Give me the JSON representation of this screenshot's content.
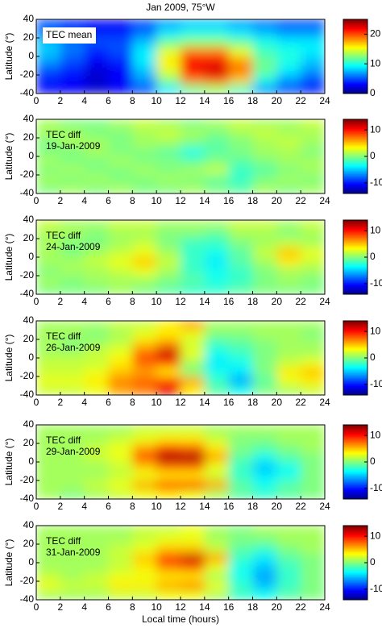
{
  "chart_data": [
    {
      "type": "heatmap",
      "title": "Jan 2009, 75°W",
      "annotation": [
        "TEC mean"
      ],
      "ylabel": "Latitude (°)",
      "colormap": "jet",
      "x": [
        1,
        3,
        5,
        7,
        9,
        11,
        13,
        15,
        17,
        19,
        21,
        23
      ],
      "y": [
        35,
        25,
        15,
        5,
        -5,
        -15,
        -25,
        -35
      ],
      "z": [
        [
          5,
          4,
          3,
          3,
          5,
          7,
          8,
          8,
          7,
          6,
          5,
          5
        ],
        [
          6,
          5,
          4,
          4,
          6,
          9,
          10,
          10,
          9,
          8,
          7,
          7
        ],
        [
          8,
          6,
          5,
          5,
          8,
          12,
          13,
          13,
          12,
          10,
          9,
          9
        ],
        [
          8,
          6,
          4,
          5,
          9,
          15,
          19,
          19,
          15,
          11,
          10,
          9
        ],
        [
          7,
          5,
          3,
          4,
          9,
          16,
          22,
          22,
          18,
          12,
          10,
          8
        ],
        [
          5,
          4,
          2,
          3,
          8,
          15,
          22,
          23,
          19,
          12,
          9,
          7
        ],
        [
          4,
          3,
          2,
          3,
          7,
          13,
          19,
          20,
          17,
          10,
          7,
          5
        ],
        [
          3,
          3,
          2,
          3,
          5,
          9,
          12,
          13,
          11,
          7,
          5,
          4
        ]
      ],
      "xlim": [
        0,
        24
      ],
      "ylim": [
        -40,
        40
      ],
      "xticks": [
        0,
        2,
        4,
        6,
        8,
        10,
        12,
        14,
        16,
        18,
        20,
        22,
        24
      ],
      "yticks": [
        -40,
        -20,
        0,
        20,
        40
      ],
      "clim": [
        0,
        25
      ],
      "cticks": [
        0,
        10,
        20
      ]
    },
    {
      "type": "heatmap",
      "annotation": [
        "TEC diff",
        "19-Jan-2009"
      ],
      "ylabel": "Latitude (°)",
      "colormap": "jet",
      "x": [
        1,
        3,
        5,
        7,
        9,
        11,
        13,
        15,
        17,
        19,
        21,
        23
      ],
      "y": [
        35,
        25,
        15,
        5,
        -5,
        -15,
        -25,
        -35
      ],
      "z": [
        [
          1,
          0,
          0,
          1,
          2,
          1,
          0,
          1,
          2,
          1,
          1,
          2
        ],
        [
          1,
          1,
          0,
          0,
          1,
          2,
          1,
          0,
          1,
          2,
          1,
          1
        ],
        [
          0,
          1,
          1,
          0,
          1,
          1,
          0,
          -1,
          0,
          1,
          2,
          1
        ],
        [
          0,
          0,
          1,
          0,
          0,
          -1,
          -3,
          -1,
          0,
          1,
          1,
          0
        ],
        [
          1,
          0,
          0,
          1,
          0,
          0,
          -1,
          0,
          -1,
          0,
          1,
          1
        ],
        [
          0,
          1,
          0,
          0,
          1,
          0,
          1,
          2,
          -2,
          -1,
          0,
          1
        ],
        [
          1,
          0,
          1,
          0,
          0,
          1,
          0,
          -1,
          -2,
          0,
          1,
          0
        ],
        [
          0,
          1,
          0,
          1,
          0,
          0,
          1,
          0,
          -1,
          1,
          0,
          1
        ]
      ],
      "xlim": [
        0,
        24
      ],
      "ylim": [
        -40,
        40
      ],
      "xticks": [
        0,
        2,
        4,
        6,
        8,
        10,
        12,
        14,
        16,
        18,
        20,
        22,
        24
      ],
      "yticks": [
        -40,
        -20,
        0,
        20,
        40
      ],
      "clim": [
        -14,
        14
      ],
      "cticks": [
        -10,
        0,
        10
      ]
    },
    {
      "type": "heatmap",
      "annotation": [
        "TEC diff",
        "24-Jan-2009"
      ],
      "ylabel": "Latitude (°)",
      "colormap": "jet",
      "x": [
        1,
        3,
        5,
        7,
        9,
        11,
        13,
        15,
        17,
        19,
        21,
        23
      ],
      "y": [
        35,
        25,
        15,
        5,
        -5,
        -15,
        -25,
        -35
      ],
      "z": [
        [
          2,
          1,
          1,
          2,
          2,
          1,
          1,
          1,
          2,
          2,
          1,
          2
        ],
        [
          1,
          1,
          0,
          1,
          1,
          0,
          0,
          -1,
          1,
          1,
          0,
          1
        ],
        [
          1,
          0,
          0,
          1,
          2,
          0,
          -2,
          -2,
          0,
          1,
          2,
          1
        ],
        [
          1,
          0,
          1,
          2,
          3,
          1,
          -2,
          -3,
          -1,
          2,
          5,
          3
        ],
        [
          1,
          1,
          2,
          3,
          5,
          2,
          -2,
          -4,
          -1,
          1,
          4,
          2
        ],
        [
          0,
          1,
          1,
          2,
          3,
          1,
          -2,
          -3,
          -2,
          0,
          1,
          1
        ],
        [
          1,
          0,
          1,
          1,
          1,
          0,
          -1,
          -3,
          -2,
          0,
          1,
          0
        ],
        [
          0,
          0,
          0,
          1,
          0,
          -1,
          -2,
          -2,
          -1,
          0,
          0,
          0
        ]
      ],
      "xlim": [
        0,
        24
      ],
      "ylim": [
        -40,
        40
      ],
      "xticks": [
        0,
        2,
        4,
        6,
        8,
        10,
        12,
        14,
        16,
        18,
        20,
        22,
        24
      ],
      "yticks": [
        -40,
        -20,
        0,
        20,
        40
      ],
      "clim": [
        -14,
        14
      ],
      "cticks": [
        -10,
        0,
        10
      ]
    },
    {
      "type": "heatmap",
      "annotation": [
        "TEC diff",
        "26-Jan-2009"
      ],
      "ylabel": "Latitude (°)",
      "colormap": "jet",
      "x": [
        1,
        3,
        5,
        7,
        9,
        11,
        13,
        15,
        17,
        19,
        21,
        23
      ],
      "y": [
        35,
        25,
        15,
        5,
        -5,
        -15,
        -25,
        -35
      ],
      "z": [
        [
          1,
          1,
          1,
          2,
          2,
          4,
          6,
          1,
          1,
          1,
          1,
          1
        ],
        [
          1,
          1,
          0,
          1,
          3,
          4,
          3,
          0,
          0,
          1,
          1,
          0
        ],
        [
          1,
          0,
          1,
          2,
          5,
          7,
          2,
          -2,
          -1,
          0,
          1,
          1
        ],
        [
          1,
          1,
          2,
          3,
          8,
          12,
          3,
          -3,
          -2,
          0,
          1,
          1
        ],
        [
          2,
          2,
          2,
          4,
          8,
          9,
          1,
          -4,
          -3,
          0,
          2,
          3
        ],
        [
          2,
          2,
          3,
          5,
          6,
          4,
          0,
          -3,
          -4,
          0,
          4,
          5
        ],
        [
          3,
          3,
          4,
          7,
          8,
          9,
          6,
          -2,
          -6,
          -1,
          3,
          4
        ],
        [
          2,
          2,
          3,
          6,
          7,
          11,
          4,
          -1,
          -3,
          0,
          1,
          2
        ]
      ],
      "xlim": [
        0,
        24
      ],
      "ylim": [
        -40,
        40
      ],
      "xticks": [
        0,
        2,
        4,
        6,
        8,
        10,
        12,
        14,
        16,
        18,
        20,
        22,
        24
      ],
      "yticks": [
        -40,
        -20,
        0,
        20,
        40
      ],
      "clim": [
        -14,
        14
      ],
      "cticks": [
        -10,
        0,
        10
      ]
    },
    {
      "type": "heatmap",
      "annotation": [
        "TEC diff",
        "29-Jan-2009"
      ],
      "ylabel": "Latitude (°)",
      "colormap": "jet",
      "x": [
        1,
        3,
        5,
        7,
        9,
        11,
        13,
        15,
        17,
        19,
        21,
        23
      ],
      "y": [
        35,
        25,
        15,
        5,
        -5,
        -15,
        -25,
        -35
      ],
      "z": [
        [
          1,
          1,
          1,
          1,
          2,
          2,
          2,
          1,
          1,
          1,
          1,
          1
        ],
        [
          1,
          1,
          1,
          2,
          3,
          4,
          4,
          2,
          0,
          0,
          1,
          1
        ],
        [
          1,
          1,
          2,
          3,
          6,
          9,
          8,
          4,
          0,
          -1,
          0,
          1
        ],
        [
          1,
          1,
          2,
          3,
          9,
          13,
          13,
          6,
          -1,
          -3,
          -1,
          0
        ],
        [
          1,
          1,
          1,
          2,
          5,
          8,
          8,
          3,
          -2,
          -5,
          -3,
          0
        ],
        [
          1,
          1,
          1,
          2,
          3,
          4,
          4,
          2,
          -2,
          -4,
          -3,
          0
        ],
        [
          1,
          1,
          2,
          3,
          6,
          10,
          10,
          6,
          -1,
          -3,
          -1,
          0
        ],
        [
          1,
          0,
          1,
          2,
          3,
          4,
          3,
          1,
          -1,
          -2,
          -1,
          0
        ]
      ],
      "xlim": [
        0,
        24
      ],
      "ylim": [
        -40,
        40
      ],
      "xticks": [
        0,
        2,
        4,
        6,
        8,
        10,
        12,
        14,
        16,
        18,
        20,
        22,
        24
      ],
      "yticks": [
        -40,
        -20,
        0,
        20,
        40
      ],
      "clim": [
        -14,
        14
      ],
      "cticks": [
        -10,
        0,
        10
      ]
    },
    {
      "type": "heatmap",
      "annotation": [
        "TEC diff",
        "31-Jan-2009"
      ],
      "ylabel": "Latitude (°)",
      "colormap": "jet",
      "x": [
        1,
        3,
        5,
        7,
        9,
        11,
        13,
        15,
        17,
        19,
        21,
        23
      ],
      "y": [
        35,
        25,
        15,
        5,
        -5,
        -15,
        -25,
        -35
      ],
      "z": [
        [
          1,
          1,
          1,
          1,
          2,
          2,
          3,
          1,
          0,
          1,
          1,
          1
        ],
        [
          1,
          1,
          1,
          1,
          2,
          3,
          3,
          1,
          0,
          0,
          1,
          1
        ],
        [
          1,
          1,
          1,
          2,
          3,
          5,
          5,
          2,
          -1,
          -2,
          0,
          1
        ],
        [
          1,
          1,
          1,
          2,
          5,
          10,
          12,
          6,
          -2,
          -4,
          -1,
          0
        ],
        [
          1,
          1,
          1,
          2,
          4,
          7,
          8,
          3,
          -3,
          -5,
          -2,
          0
        ],
        [
          2,
          1,
          2,
          3,
          3,
          4,
          4,
          1,
          -3,
          -6,
          -2,
          0
        ],
        [
          3,
          2,
          2,
          4,
          4,
          6,
          7,
          3,
          -2,
          -5,
          -2,
          0
        ],
        [
          1,
          1,
          1,
          2,
          2,
          3,
          3,
          1,
          -2,
          -3,
          -1,
          0
        ]
      ],
      "xlim": [
        0,
        24
      ],
      "ylim": [
        -40,
        40
      ],
      "xticks": [
        0,
        2,
        4,
        6,
        8,
        10,
        12,
        14,
        16,
        18,
        20,
        22,
        24
      ],
      "yticks": [
        -40,
        -20,
        0,
        20,
        40
      ],
      "clim": [
        -14,
        14
      ],
      "cticks": [
        -10,
        0,
        10
      ],
      "xlabel": "Local time (hours)"
    }
  ]
}
